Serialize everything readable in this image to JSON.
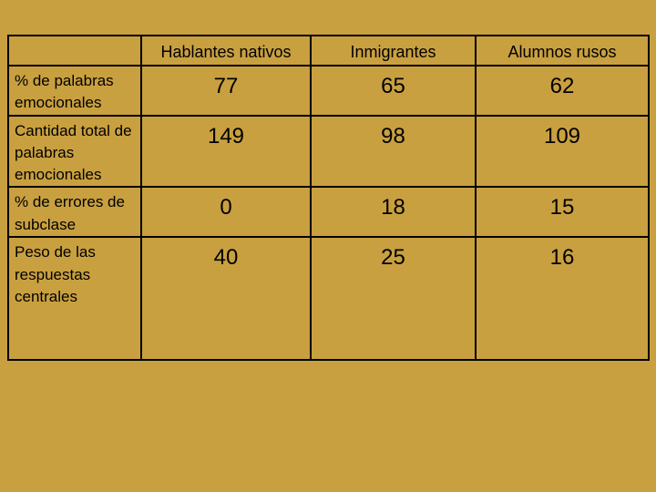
{
  "table": {
    "columns": [
      "",
      "Hablantes nativos",
      "Inmigrantes",
      "Alumnos rusos"
    ],
    "rows": [
      {
        "label": "% de palabras emocionales",
        "values": [
          "77",
          "65",
          "62"
        ]
      },
      {
        "label": "Cantidad total de palabras emocionales",
        "values": [
          "149",
          "98",
          "109"
        ]
      },
      {
        "label": "% de errores de subclase",
        "values": [
          "0",
          "18",
          "15"
        ]
      },
      {
        "label": "Peso de las respuestas centrales",
        "values": [
          "40",
          "25",
          "16"
        ]
      }
    ]
  },
  "colors": {
    "background": "#C9A040",
    "border": "#000000",
    "text": "#000000"
  }
}
